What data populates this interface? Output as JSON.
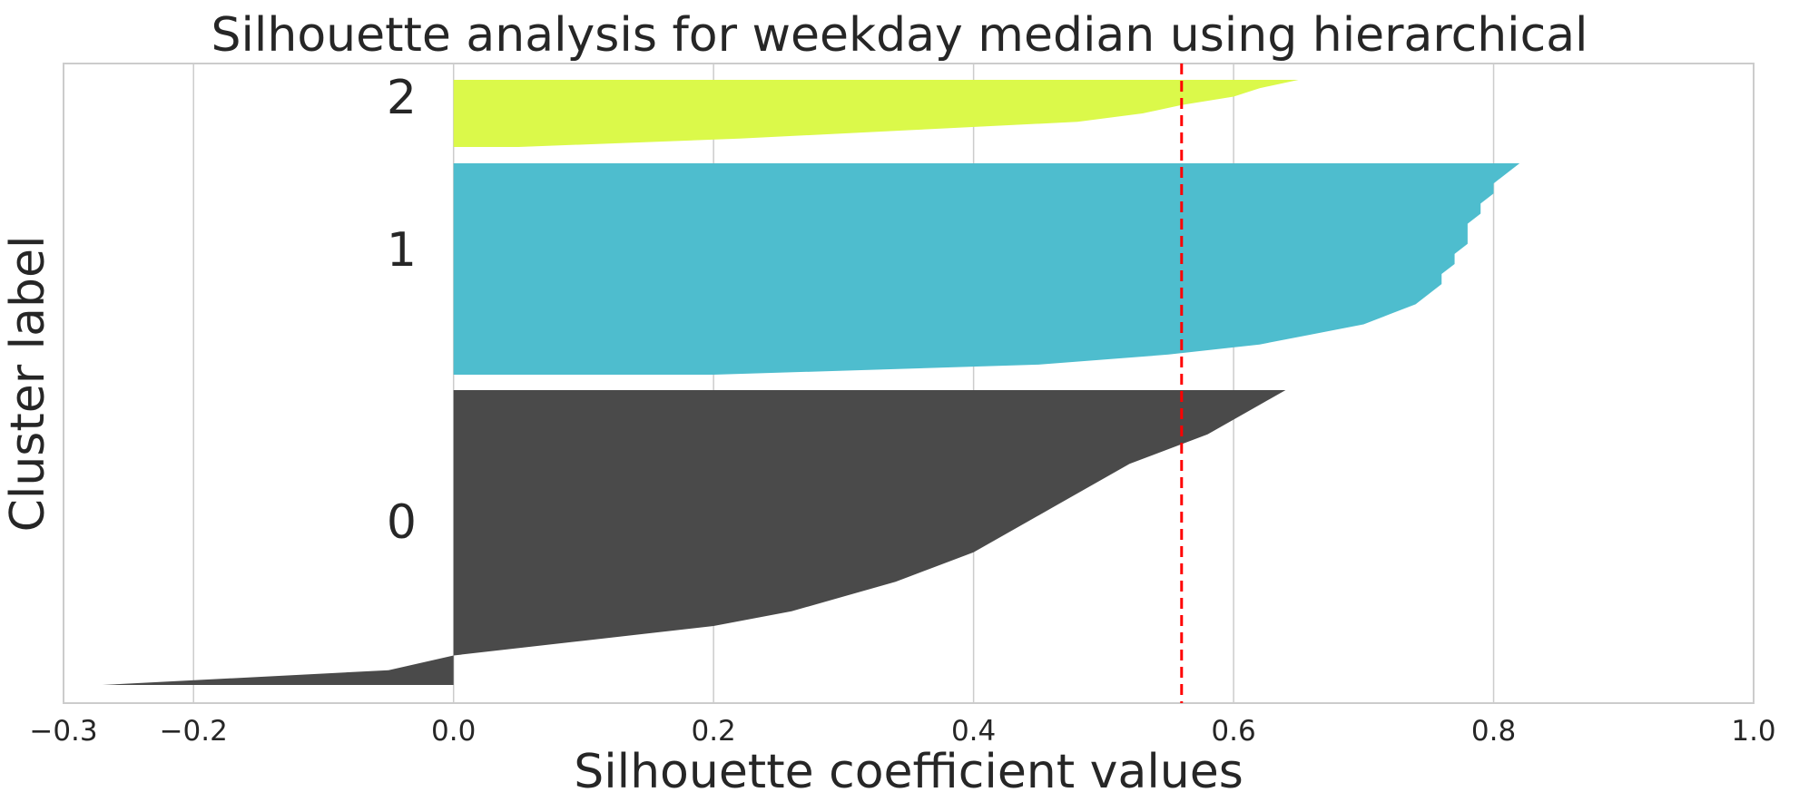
{
  "chart_data": {
    "type": "silhouette",
    "title": "Silhouette analysis for weekday median using hierarchical",
    "xlabel": "Silhouette coefficient values",
    "ylabel": "Cluster label",
    "xlim": [
      -0.3,
      1.0
    ],
    "xticks": [
      -0.3,
      -0.2,
      0.0,
      0.2,
      0.4,
      0.6,
      0.8,
      1.0
    ],
    "xtick_labels": [
      "−0.3",
      "−0.2",
      "0.0",
      "0.2",
      "0.4",
      "0.6",
      "0.8",
      "1.0"
    ],
    "grid": true,
    "average_silhouette": 0.56,
    "average_line_color": "#ff0000",
    "clusters": [
      {
        "label": "0",
        "color": "#4a4a4a",
        "silhouette_profile": [
          0.64,
          0.62,
          0.6,
          0.58,
          0.55,
          0.52,
          0.5,
          0.48,
          0.46,
          0.44,
          0.42,
          0.4,
          0.37,
          0.34,
          0.3,
          0.26,
          0.2,
          0.1,
          0.0,
          -0.05,
          -0.27
        ]
      },
      {
        "label": "1",
        "color": "#4ebdce",
        "silhouette_profile": [
          0.82,
          0.81,
          0.8,
          0.8,
          0.79,
          0.79,
          0.78,
          0.78,
          0.78,
          0.77,
          0.77,
          0.76,
          0.76,
          0.75,
          0.74,
          0.72,
          0.7,
          0.66,
          0.62,
          0.55,
          0.45,
          0.2
        ]
      },
      {
        "label": "2",
        "color": "#dbf94a",
        "silhouette_profile": [
          0.65,
          0.62,
          0.6,
          0.56,
          0.53,
          0.48,
          0.35,
          0.22,
          0.05
        ]
      }
    ]
  }
}
